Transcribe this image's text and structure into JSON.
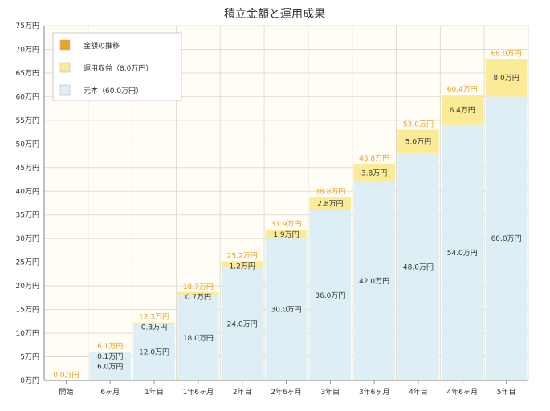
{
  "colors": {
    "plot_bg": "#fffdf5",
    "grid": "#e2ddd0",
    "axis": "#999999",
    "principal": "#deeef5",
    "gain": "#fbeb97",
    "trend": "#f0a020"
  },
  "chart_data": {
    "type": "bar",
    "stacked": true,
    "title": "積立金額と運用成果",
    "xlabel": "",
    "ylabel": "",
    "ylim": [
      0,
      75
    ],
    "ystep": 5,
    "yunit": "万円",
    "grid": true,
    "legend_position": "top-left",
    "categories": [
      "開始",
      "6ヶ月",
      "1年目",
      "1年6ヶ月",
      "2年目",
      "2年6ヶ月",
      "3年目",
      "3年6ヶ月",
      "4年目",
      "4年6ヶ月",
      "5年目"
    ],
    "series": [
      {
        "key": "principal",
        "name": "元本（60.0万円）",
        "values": [
          0,
          6.0,
          12.0,
          18.0,
          24.0,
          30.0,
          36.0,
          42.0,
          48.0,
          54.0,
          60.0
        ],
        "labels": [
          null,
          "6.0万円",
          "12.0万円",
          "18.0万円",
          "24.0万円",
          "30.0万円",
          "36.0万円",
          "42.0万円",
          "48.0万円",
          "54.0万円",
          "60.0万円"
        ]
      },
      {
        "key": "gain",
        "name": "運用収益（8.0万円）",
        "values": [
          0,
          0.1,
          0.3,
          0.7,
          1.2,
          1.9,
          2.8,
          3.8,
          5.0,
          6.4,
          8.0
        ],
        "labels": [
          null,
          "0.1万円",
          "0.3万円",
          "0.7万円",
          "1.2万円",
          "1.9万円",
          "2.8万円",
          "3.8万円",
          "5.0万円",
          "6.4万円",
          "8.0万円"
        ]
      }
    ],
    "totals": [
      0.0,
      6.1,
      12.3,
      18.7,
      25.2,
      31.9,
      38.8,
      45.8,
      53.0,
      60.4,
      68.0
    ],
    "total_labels": [
      "0.0万円",
      "6.1万円",
      "12.3万円",
      "18.7万円",
      "25.2万円",
      "31.9万円",
      "38.8万円",
      "45.8万円",
      "53.0万円",
      "60.4万円",
      "68.0万円"
    ],
    "legend": [
      {
        "key": "trend",
        "label": "金額の推移"
      },
      {
        "key": "gain",
        "label": "運用収益（8.0万円）"
      },
      {
        "key": "principal",
        "label": "元本（60.0万円）"
      }
    ]
  }
}
